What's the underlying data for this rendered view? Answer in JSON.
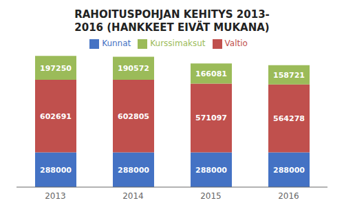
{
  "chart_data": {
    "type": "bar",
    "title": "RAHOITUSPOHJAN KEHITYS 2013-\n2016 (HANKKEET EIVÄT MUKANA)",
    "categories": [
      "2013",
      "2014",
      "2015",
      "2016"
    ],
    "series": [
      {
        "name": "Kunnat",
        "color": "#4472c4",
        "values": [
          288000,
          288000,
          288000,
          288000
        ]
      },
      {
        "name": "Valtio",
        "color": "#c0504d",
        "values": [
          602691,
          602805,
          571097,
          564278
        ]
      },
      {
        "name": "Kurssimaksut",
        "color": "#9bbb59",
        "values": [
          197250,
          190572,
          166081,
          158721
        ]
      }
    ],
    "ylim": [
      0,
      1150000
    ],
    "stacked": true,
    "data_labels": true,
    "tick_labels": "x",
    "grid": false,
    "legend": "top"
  }
}
